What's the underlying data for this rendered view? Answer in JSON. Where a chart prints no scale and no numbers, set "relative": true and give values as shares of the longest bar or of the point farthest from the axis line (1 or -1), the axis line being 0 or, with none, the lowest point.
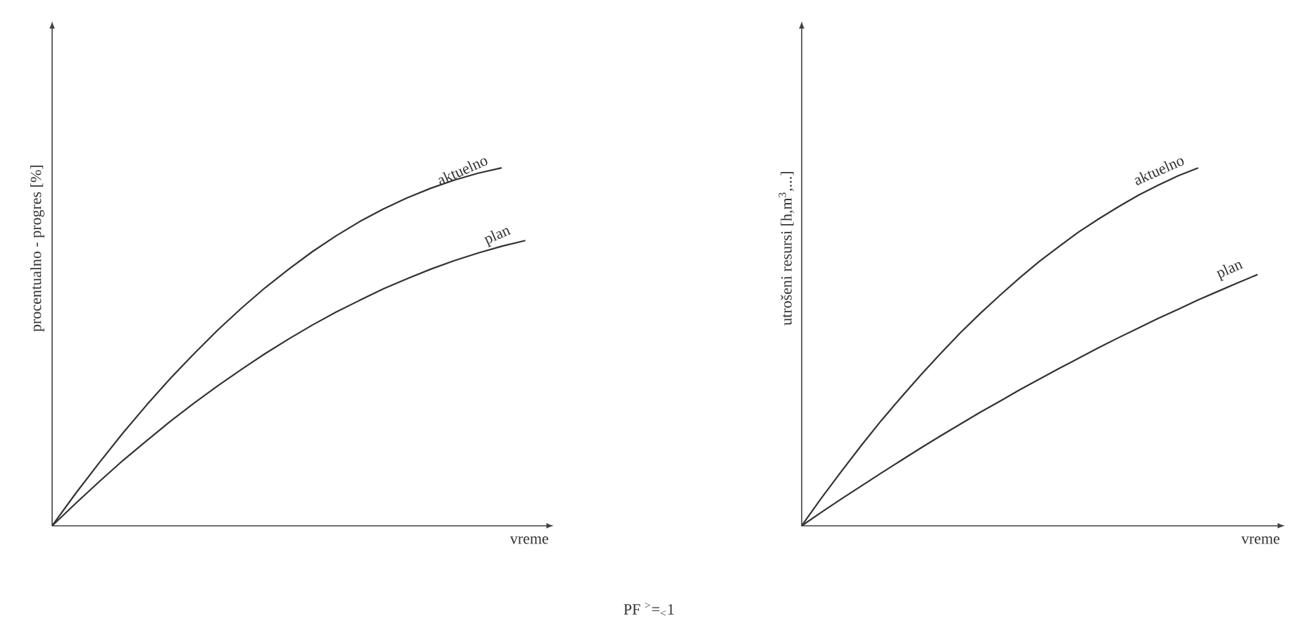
{
  "chart_data": [
    {
      "type": "line",
      "relative": true,
      "xlabel": "vreme",
      "ylabel": "procentualno - progres [%]",
      "annotations": [
        "PF $^{>}$=$_{<}$1"
      ],
      "categories": [
        null,
        null,
        null,
        null,
        null,
        null,
        null,
        null,
        null,
        null,
        null,
        null,
        null,
        null,
        null,
        null,
        null,
        null,
        null,
        null,
        null
      ],
      "series": [
        {
          "name": "aktuelno",
          "color": "#333333",
          "values": [
            0,
            0.091,
            0.177,
            0.26,
            0.338,
            0.412,
            0.481,
            0.547,
            0.608,
            0.665,
            0.717,
            0.766,
            0.81,
            0.85,
            0.885,
            0.916,
            0.943,
            0.966,
            0.985,
            1.0,
            null
          ]
        },
        {
          "name": "plan",
          "color": "#333333",
          "values": [
            0,
            0.063,
            0.124,
            0.183,
            0.238,
            0.292,
            0.343,
            0.391,
            0.437,
            0.481,
            0.522,
            0.561,
            0.597,
            0.63,
            0.662,
            0.69,
            0.717,
            0.741,
            0.762,
            0.781,
            0.797
          ]
        }
      ]
    },
    {
      "type": "line",
      "relative": true,
      "xlabel": "vreme",
      "ylabel": "utrošeni resursi [h,m$^{3}$,...]",
      "categories": [
        null,
        null,
        null,
        null,
        null,
        null,
        null,
        null,
        null,
        null,
        null,
        null,
        null,
        null,
        null,
        null,
        null,
        null,
        null,
        null,
        null,
        null,
        null,
        null
      ],
      "series": [
        {
          "name": "aktuelno",
          "color": "#333333",
          "values": [
            0,
            0.078,
            0.152,
            0.224,
            0.293,
            0.358,
            0.421,
            0.481,
            0.539,
            0.593,
            0.644,
            0.693,
            0.739,
            0.781,
            0.822,
            0.858,
            0.892,
            0.924,
            0.952,
            0.978,
            1.0,
            null,
            null,
            null
          ]
        },
        {
          "name": "plan",
          "color": "#333333",
          "values": [
            0,
            0.038,
            0.075,
            0.111,
            0.147,
            0.182,
            0.217,
            0.251,
            0.284,
            0.317,
            0.348,
            0.38,
            0.41,
            0.44,
            0.469,
            0.498,
            0.526,
            0.553,
            0.58,
            0.605,
            0.631,
            0.655,
            0.679,
            0.702
          ]
        }
      ]
    }
  ]
}
